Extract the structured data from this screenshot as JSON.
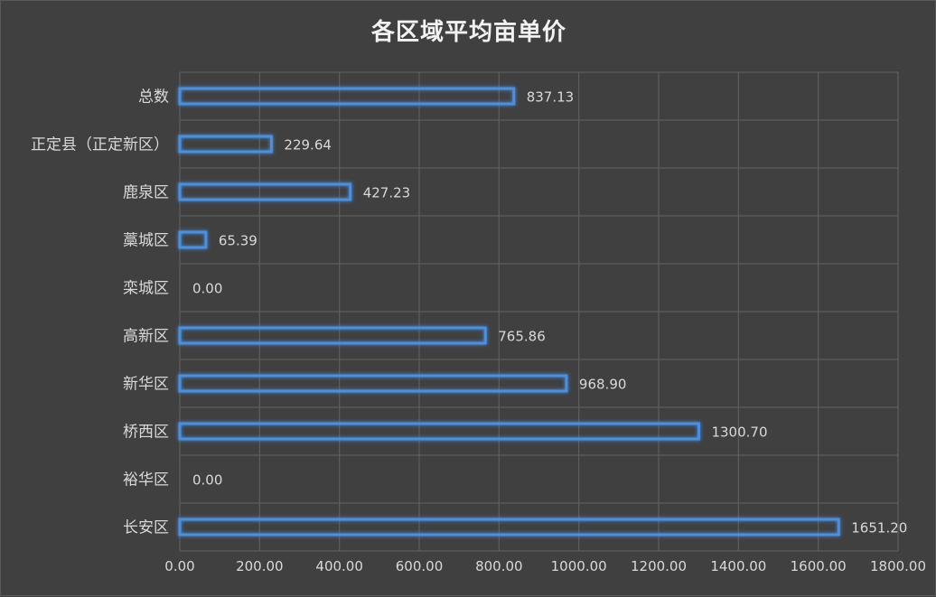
{
  "chart_data": {
    "type": "bar",
    "orientation": "horizontal",
    "title": "各区域平均亩单价",
    "categories": [
      "总数",
      "正定县（正定新区）",
      "鹿泉区",
      "藁城区",
      "栾城区",
      "高新区",
      "新华区",
      "桥西区",
      "裕华区",
      "长安区"
    ],
    "values": [
      837.13,
      229.64,
      427.23,
      65.39,
      0.0,
      765.86,
      968.9,
      1300.7,
      0.0,
      1651.2
    ],
    "value_labels": [
      "837.13",
      "229.64",
      "427.23",
      "65.39",
      "0.00",
      "765.86",
      "968.90",
      "1300.70",
      "0.00",
      "1651.20"
    ],
    "xlim": [
      0,
      1800
    ],
    "x_ticks": [
      0,
      200,
      400,
      600,
      800,
      1000,
      1200,
      1400,
      1600,
      1800
    ],
    "x_tick_labels": [
      "0.00",
      "200.00",
      "400.00",
      "600.00",
      "800.00",
      "1000.00",
      "1200.00",
      "1400.00",
      "1600.00",
      "1800.00"
    ],
    "xlabel": "",
    "ylabel": "",
    "grid": true,
    "legend": "none",
    "colors": {
      "background": "#404040",
      "grid": "#5e5e5e",
      "bar_stroke": "#5b9bd5",
      "bar_glow": "#4a90e2",
      "text": "#d9d9d9",
      "title": "#f2f2f2"
    }
  }
}
